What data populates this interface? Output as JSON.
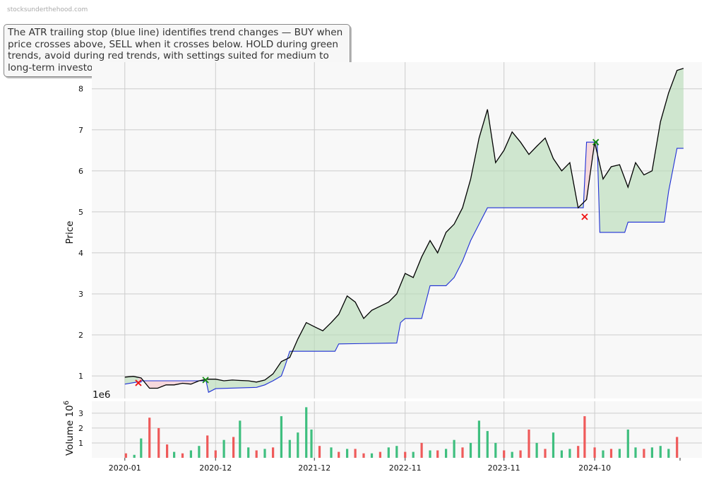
{
  "watermark": "stocksunderthehood.com",
  "annotation": "The ATR trailing stop (blue line) identifies trend changes — BUY when price crosses above, SELL when it crosses below. HOLD during green trends, avoid during red trends, with settings suited for medium to long-term investors.",
  "colors": {
    "price": "#000000",
    "stop": "#1f2fd6",
    "uptrend_fill": "#b9dcb9",
    "downtrend_fill": "#f5c6cc",
    "buy_marker": "#118811",
    "sell_marker": "#ee1111",
    "volume_up": "#3fbf7f",
    "volume_down": "#ef5a5a",
    "grid": "#cccccc",
    "plot_bg": "#f8f8f8"
  },
  "chart_data": [
    {
      "type": "line",
      "ylabel": "Price",
      "ylim": [
        0.45,
        8.65
      ],
      "yticks": [
        1,
        2,
        3,
        4,
        5,
        6,
        7,
        8
      ],
      "grid": true,
      "series": [
        {
          "kind": "price",
          "points": [
            [
              "2020-01-01",
              0.97
            ],
            [
              "2020-02-01",
              0.99
            ],
            [
              "2020-03-01",
              0.95
            ],
            [
              "2020-04-01",
              0.7
            ],
            [
              "2020-05-01",
              0.7
            ],
            [
              "2020-06-01",
              0.78
            ],
            [
              "2020-07-01",
              0.78
            ],
            [
              "2020-08-01",
              0.82
            ],
            [
              "2020-09-01",
              0.8
            ],
            [
              "2020-10-01",
              0.88
            ],
            [
              "2020-11-01",
              0.92
            ],
            [
              "2020-12-01",
              0.92
            ],
            [
              "2021-01-01",
              0.88
            ],
            [
              "2021-02-01",
              0.9
            ],
            [
              "2021-03-01",
              0.89
            ],
            [
              "2021-04-01",
              0.88
            ],
            [
              "2021-05-01",
              0.85
            ],
            [
              "2021-06-01",
              0.9
            ],
            [
              "2021-07-01",
              1.05
            ],
            [
              "2021-08-01",
              1.35
            ],
            [
              "2021-09-01",
              1.45
            ],
            [
              "2021-10-01",
              1.9
            ],
            [
              "2021-11-01",
              2.3
            ],
            [
              "2021-12-01",
              2.2
            ],
            [
              "2022-01-01",
              2.1
            ],
            [
              "2022-02-01",
              2.3
            ],
            [
              "2022-03-01",
              2.5
            ],
            [
              "2022-04-01",
              2.95
            ],
            [
              "2022-05-01",
              2.8
            ],
            [
              "2022-06-01",
              2.4
            ],
            [
              "2022-07-01",
              2.6
            ],
            [
              "2022-08-01",
              2.7
            ],
            [
              "2022-09-01",
              2.8
            ],
            [
              "2022-10-01",
              3.0
            ],
            [
              "2022-11-01",
              3.5
            ],
            [
              "2022-12-01",
              3.4
            ],
            [
              "2023-01-01",
              3.9
            ],
            [
              "2023-02-01",
              4.3
            ],
            [
              "2023-03-01",
              4.0
            ],
            [
              "2023-04-01",
              4.5
            ],
            [
              "2023-05-01",
              4.7
            ],
            [
              "2023-06-01",
              5.1
            ],
            [
              "2023-07-01",
              5.8
            ],
            [
              "2023-08-01",
              6.8
            ],
            [
              "2023-09-01",
              7.5
            ],
            [
              "2023-10-01",
              6.2
            ],
            [
              "2023-11-01",
              6.5
            ],
            [
              "2023-12-01",
              6.95
            ],
            [
              "2024-01-01",
              6.7
            ],
            [
              "2024-02-01",
              6.4
            ],
            [
              "2024-03-01",
              6.6
            ],
            [
              "2024-04-01",
              6.8
            ],
            [
              "2024-05-01",
              6.3
            ],
            [
              "2024-06-01",
              6.0
            ],
            [
              "2024-07-01",
              6.2
            ],
            [
              "2024-08-01",
              5.1
            ],
            [
              "2024-09-01",
              5.3
            ],
            [
              "2024-10-01",
              6.7
            ],
            [
              "2024-11-01",
              5.8
            ],
            [
              "2024-12-01",
              6.1
            ],
            [
              "2025-01-01",
              6.15
            ],
            [
              "2025-02-01",
              5.6
            ],
            [
              "2025-03-01",
              6.2
            ],
            [
              "2025-04-01",
              5.9
            ],
            [
              "2025-05-01",
              6.0
            ],
            [
              "2025-06-01",
              7.2
            ],
            [
              "2025-07-01",
              7.9
            ],
            [
              "2025-08-01",
              8.45
            ],
            [
              "2025-08-25",
              8.5
            ]
          ]
        },
        {
          "kind": "atr_trailing_stop",
          "points": [
            [
              "2020-01-01",
              0.8
            ],
            [
              "2020-02-15",
              0.85
            ],
            [
              "2020-03-01",
              0.85
            ],
            [
              "2020-03-02",
              0.88
            ],
            [
              "2020-10-27",
              0.88
            ],
            [
              "2020-11-05",
              0.6
            ],
            [
              "2020-12-01",
              0.69
            ],
            [
              "2021-05-01",
              0.72
            ],
            [
              "2021-06-01",
              0.78
            ],
            [
              "2021-07-01",
              0.88
            ],
            [
              "2021-08-01",
              1.0
            ],
            [
              "2021-08-15",
              1.25
            ],
            [
              "2021-09-01",
              1.6
            ],
            [
              "2022-02-15",
              1.6
            ],
            [
              "2022-03-01",
              1.78
            ],
            [
              "2022-10-01",
              1.8
            ],
            [
              "2022-10-15",
              2.3
            ],
            [
              "2022-11-01",
              2.4
            ],
            [
              "2023-01-01",
              2.4
            ],
            [
              "2023-02-01",
              3.2
            ],
            [
              "2023-04-01",
              3.2
            ],
            [
              "2023-05-01",
              3.4
            ],
            [
              "2023-06-01",
              3.8
            ],
            [
              "2023-07-01",
              4.3
            ],
            [
              "2023-08-01",
              4.7
            ],
            [
              "2023-09-01",
              5.1
            ],
            [
              "2024-08-20",
              5.1
            ],
            [
              "2024-09-01",
              6.7
            ],
            [
              "2024-10-10",
              6.7
            ],
            [
              "2024-10-20",
              4.5
            ],
            [
              "2025-01-20",
              4.5
            ],
            [
              "2025-02-01",
              4.75
            ],
            [
              "2025-06-15",
              4.75
            ],
            [
              "2025-07-01",
              5.5
            ],
            [
              "2025-08-01",
              6.55
            ],
            [
              "2025-08-25",
              6.55
            ]
          ]
        }
      ],
      "trend_regions": [
        {
          "trend": "up",
          "from": "2020-01-01",
          "to": "2020-02-20"
        },
        {
          "trend": "down",
          "from": "2020-02-20",
          "to": "2020-10-25"
        },
        {
          "trend": "up",
          "from": "2020-10-25",
          "to": "2024-08-25"
        },
        {
          "trend": "down",
          "from": "2024-08-25",
          "to": "2024-10-05"
        },
        {
          "trend": "up",
          "from": "2024-10-05",
          "to": "2025-08-25"
        }
      ],
      "signals": [
        {
          "date": "2020-02-20",
          "price": 0.83,
          "type": "sell"
        },
        {
          "date": "2020-10-25",
          "price": 0.9,
          "type": "buy"
        },
        {
          "date": "2024-08-25",
          "price": 4.88,
          "type": "sell"
        },
        {
          "date": "2024-10-05",
          "price": 6.7,
          "type": "buy"
        }
      ]
    },
    {
      "type": "bar",
      "ylabel": "Volume",
      "ylabel_unit": "10",
      "ylabel_exp": "6",
      "offset_text": "1e6",
      "ylim": [
        0,
        3.8
      ],
      "yticks": [
        1,
        2,
        3
      ],
      "xlim": [
        "2019-09-01",
        "2025-11-01"
      ],
      "xticks": [
        "2020-01",
        "2020-12",
        "2021-12",
        "2022-11",
        "2023-11",
        "2024-10"
      ],
      "grid": true,
      "bars": [
        [
          "2020-01-05",
          0.3,
          "d"
        ],
        [
          "2020-02-05",
          0.2,
          "u"
        ],
        [
          "2020-03-01",
          1.3,
          "u"
        ],
        [
          "2020-04-01",
          2.7,
          "d"
        ],
        [
          "2020-05-05",
          2.0,
          "d"
        ],
        [
          "2020-06-05",
          0.9,
          "d"
        ],
        [
          "2020-07-01",
          0.4,
          "u"
        ],
        [
          "2020-08-01",
          0.3,
          "d"
        ],
        [
          "2020-09-01",
          0.5,
          "u"
        ],
        [
          "2020-10-01",
          0.8,
          "u"
        ],
        [
          "2020-11-01",
          1.5,
          "d"
        ],
        [
          "2020-12-01",
          0.5,
          "d"
        ],
        [
          "2021-01-01",
          1.2,
          "u"
        ],
        [
          "2021-02-05",
          1.4,
          "d"
        ],
        [
          "2021-03-01",
          2.5,
          "u"
        ],
        [
          "2021-04-01",
          0.7,
          "u"
        ],
        [
          "2021-05-01",
          0.5,
          "d"
        ],
        [
          "2021-06-01",
          0.6,
          "u"
        ],
        [
          "2021-07-01",
          0.7,
          "d"
        ],
        [
          "2021-08-01",
          2.8,
          "u"
        ],
        [
          "2021-09-01",
          1.2,
          "u"
        ],
        [
          "2021-10-01",
          1.7,
          "u"
        ],
        [
          "2021-11-01",
          3.4,
          "u"
        ],
        [
          "2021-11-20",
          1.9,
          "u"
        ],
        [
          "2021-12-20",
          0.8,
          "d"
        ],
        [
          "2022-02-01",
          0.7,
          "u"
        ],
        [
          "2022-03-01",
          0.4,
          "d"
        ],
        [
          "2022-04-01",
          0.6,
          "u"
        ],
        [
          "2022-05-01",
          0.6,
          "d"
        ],
        [
          "2022-06-01",
          0.3,
          "d"
        ],
        [
          "2022-07-01",
          0.3,
          "u"
        ],
        [
          "2022-08-01",
          0.4,
          "d"
        ],
        [
          "2022-09-01",
          0.7,
          "u"
        ],
        [
          "2022-10-01",
          0.8,
          "u"
        ],
        [
          "2022-11-01",
          0.4,
          "d"
        ],
        [
          "2022-12-01",
          0.4,
          "u"
        ],
        [
          "2023-01-01",
          1.0,
          "d"
        ],
        [
          "2023-02-01",
          0.5,
          "u"
        ],
        [
          "2023-03-01",
          0.5,
          "d"
        ],
        [
          "2023-04-01",
          0.6,
          "u"
        ],
        [
          "2023-05-01",
          1.2,
          "u"
        ],
        [
          "2023-06-01",
          0.7,
          "d"
        ],
        [
          "2023-07-01",
          1.0,
          "u"
        ],
        [
          "2023-08-01",
          2.5,
          "u"
        ],
        [
          "2023-09-01",
          1.8,
          "u"
        ],
        [
          "2023-10-01",
          1.0,
          "u"
        ],
        [
          "2023-11-01",
          0.5,
          "d"
        ],
        [
          "2023-12-01",
          0.4,
          "u"
        ],
        [
          "2024-01-01",
          0.5,
          "d"
        ],
        [
          "2024-02-01",
          1.9,
          "d"
        ],
        [
          "2024-03-01",
          1.0,
          "u"
        ],
        [
          "2024-04-01",
          0.6,
          "d"
        ],
        [
          "2024-05-01",
          1.7,
          "u"
        ],
        [
          "2024-06-01",
          0.5,
          "u"
        ],
        [
          "2024-07-01",
          0.6,
          "u"
        ],
        [
          "2024-08-01",
          0.8,
          "d"
        ],
        [
          "2024-08-25",
          2.8,
          "d"
        ],
        [
          "2024-10-01",
          0.7,
          "d"
        ],
        [
          "2024-11-01",
          0.5,
          "u"
        ],
        [
          "2024-12-01",
          0.6,
          "d"
        ],
        [
          "2025-01-01",
          0.6,
          "u"
        ],
        [
          "2025-02-01",
          1.9,
          "u"
        ],
        [
          "2025-03-01",
          0.7,
          "u"
        ],
        [
          "2025-04-01",
          0.6,
          "d"
        ],
        [
          "2025-05-01",
          0.7,
          "u"
        ],
        [
          "2025-06-01",
          0.8,
          "u"
        ],
        [
          "2025-07-01",
          0.6,
          "u"
        ],
        [
          "2025-08-01",
          1.4,
          "d"
        ]
      ]
    }
  ]
}
